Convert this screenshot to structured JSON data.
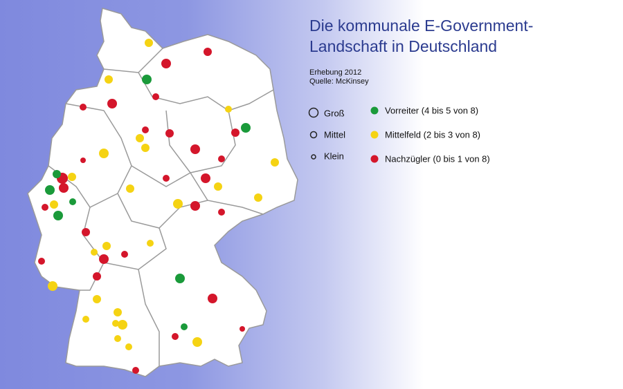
{
  "header": {
    "title": [
      "Die kommunale E-Government-",
      "Landschaft in Deutschland"
    ],
    "survey": "Erhebung 2012",
    "source": "Quelle: McKinsey"
  },
  "legend": {
    "sizes": [
      {
        "label": "Groß"
      },
      {
        "label": "Mittel"
      },
      {
        "label": "Klein"
      }
    ],
    "colors": [
      {
        "label": "Vorreiter (4 bis 5 von 8)",
        "color": "#1a9a3a"
      },
      {
        "label": "Mittelfeld (2 bis 3 von 8)",
        "color": "#f5d313"
      },
      {
        "label": "Nachzügler (0 bis 1 von 8)",
        "color": "#d4162b"
      }
    ]
  }
}
